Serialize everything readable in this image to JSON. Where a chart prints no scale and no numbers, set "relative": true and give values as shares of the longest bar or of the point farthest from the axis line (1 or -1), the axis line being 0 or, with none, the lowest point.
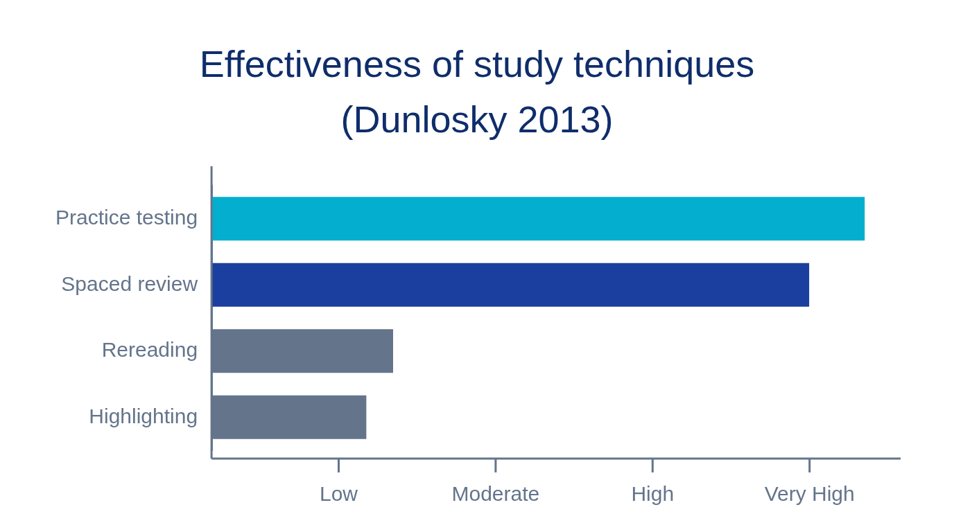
{
  "chart_data": {
    "type": "bar",
    "orientation": "horizontal",
    "relative": true,
    "title": "Effectiveness of study techniques (Dunlosky 2013)",
    "categories": [
      "Practice testing",
      "Spaced review",
      "Rereading",
      "Highlighting"
    ],
    "values": [
      1,
      0.915,
      0.278,
      0.237
    ],
    "colors": [
      "#04aecf",
      "#1b3f9e",
      "#64748b",
      "#64748b"
    ],
    "annotations": [
      "Low",
      "Moderate",
      "High",
      "Very High"
    ]
  }
}
